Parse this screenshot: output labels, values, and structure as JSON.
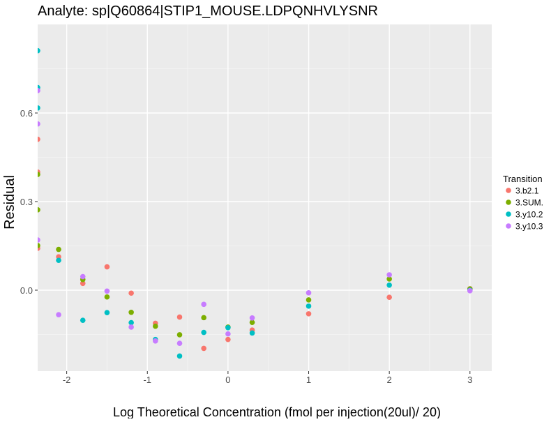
{
  "chart_data": {
    "type": "scatter",
    "title": "Analyte: sp|Q60864|STIP1_MOUSE.LDPQNHVLYSNR",
    "xlabel": "Log Theoretical Concentration (fmol per injection(20ul)/ 20)",
    "ylabel": "Residual",
    "xlim": [
      -2.36,
      3.27
    ],
    "ylim": [
      -0.274,
      0.9
    ],
    "x_ticks": [
      -2,
      -1,
      0,
      1,
      2,
      3
    ],
    "x_tick_labels": [
      "-2",
      "-1",
      "0",
      "1",
      "2",
      "3"
    ],
    "y_ticks": [
      0.0,
      0.3,
      0.6
    ],
    "y_tick_labels": [
      "0.0",
      "0.3",
      "0.6"
    ],
    "grid": true,
    "legend": {
      "title": "Transition",
      "placement": "right"
    },
    "series": [
      {
        "name": "3.b2.1",
        "color": "#F8766D",
        "points": [
          [
            -2.4,
            0.511
          ],
          [
            -2.4,
            0.4
          ],
          [
            -2.4,
            0.142
          ],
          [
            -2.1,
            0.113
          ],
          [
            -1.8,
            0.023
          ],
          [
            -1.5,
            0.079
          ],
          [
            -1.2,
            -0.01
          ],
          [
            -0.9,
            -0.112
          ],
          [
            -0.6,
            -0.091
          ],
          [
            -0.3,
            -0.197
          ],
          [
            0,
            -0.167
          ],
          [
            0.3,
            -0.135
          ],
          [
            1,
            -0.08
          ],
          [
            2,
            -0.024
          ],
          [
            3,
            0.005
          ]
        ]
      },
      {
        "name": "3.SUM.",
        "color": "#7CAE00",
        "points": [
          [
            -2.4,
            0.392
          ],
          [
            -2.4,
            0.272
          ],
          [
            -2.4,
            0.151
          ],
          [
            -2.1,
            0.138
          ],
          [
            -1.8,
            0.036
          ],
          [
            -1.5,
            -0.023
          ],
          [
            -1.2,
            -0.075
          ],
          [
            -0.9,
            -0.122
          ],
          [
            -0.6,
            -0.151
          ],
          [
            -0.3,
            -0.093
          ],
          [
            0,
            -0.125
          ],
          [
            0.3,
            -0.109
          ],
          [
            1,
            -0.033
          ],
          [
            2,
            0.038
          ],
          [
            3,
            0.004
          ]
        ]
      },
      {
        "name": "3.y10.2",
        "color": "#00BFC4",
        "points": [
          [
            -2.4,
            0.811
          ],
          [
            -2.4,
            0.686
          ],
          [
            -2.4,
            0.617
          ],
          [
            -2.1,
            0.101
          ],
          [
            -1.8,
            -0.102
          ],
          [
            -1.5,
            -0.076
          ],
          [
            -1.2,
            -0.11
          ],
          [
            -0.9,
            -0.167
          ],
          [
            -0.6,
            -0.223
          ],
          [
            -0.3,
            -0.143
          ],
          [
            0,
            -0.127
          ],
          [
            0.3,
            -0.145
          ],
          [
            1,
            -0.054
          ],
          [
            2,
            0.017
          ],
          [
            3,
            0.0
          ]
        ]
      },
      {
        "name": "3.y10.3",
        "color": "#C77CFF",
        "points": [
          [
            -2.4,
            0.676
          ],
          [
            -2.4,
            0.563
          ],
          [
            -2.4,
            0.17
          ],
          [
            -2.1,
            -0.083
          ],
          [
            -1.8,
            0.046
          ],
          [
            -1.5,
            -0.003
          ],
          [
            -1.2,
            -0.125
          ],
          [
            -0.9,
            -0.172
          ],
          [
            -0.6,
            -0.18
          ],
          [
            -0.3,
            -0.048
          ],
          [
            0,
            -0.148
          ],
          [
            0.3,
            -0.094
          ],
          [
            1,
            -0.009
          ],
          [
            2,
            0.052
          ],
          [
            3,
            -0.002
          ]
        ]
      }
    ]
  }
}
